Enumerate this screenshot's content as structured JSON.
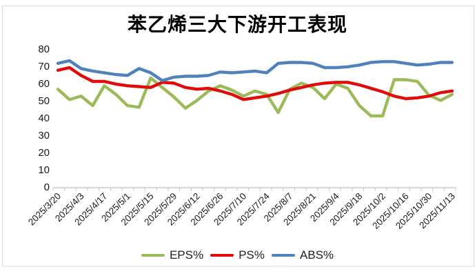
{
  "chart_data": {
    "type": "line",
    "title": "苯乙烯三大下游开工表现",
    "ylabel": "",
    "xlabel": "",
    "ylim": [
      0,
      80
    ],
    "y_ticks": [
      0,
      10,
      20,
      30,
      40,
      50,
      60,
      70,
      80
    ],
    "grid": false,
    "legend_position": "bottom",
    "x_tick_labels": [
      "2025/3/20",
      "2025/4/3",
      "2025/4/17",
      "2025/5/1",
      "2025/5/15",
      "2025/5/29",
      "2025/6/12",
      "2025/6/26",
      "2025/7/10",
      "2025/7/24",
      "2025/8/7",
      "2025/8/21",
      "2025/9/4",
      "2025/9/18",
      "2025/10/2",
      "2025/10/16",
      "2025/10/30",
      "2025/11/13"
    ],
    "x_dates_weekly": [
      "2025/3/20",
      "2025/3/27",
      "2025/4/3",
      "2025/4/10",
      "2025/4/17",
      "2025/4/24",
      "2025/5/1",
      "2025/5/8",
      "2025/5/15",
      "2025/5/22",
      "2025/5/29",
      "2025/6/5",
      "2025/6/12",
      "2025/6/19",
      "2025/6/26",
      "2025/7/3",
      "2025/7/10",
      "2025/7/17",
      "2025/7/24",
      "2025/7/31",
      "2025/8/7",
      "2025/8/14",
      "2025/8/21",
      "2025/8/28",
      "2025/9/4",
      "2025/9/11",
      "2025/9/18",
      "2025/9/25",
      "2025/10/2",
      "2025/10/9",
      "2025/10/16",
      "2025/10/23",
      "2025/10/30",
      "2025/11/6",
      "2025/11/13"
    ],
    "series": [
      {
        "name": "EPS%",
        "color": "#9BBB59",
        "values": [
          56.5,
          50.5,
          52.5,
          47,
          58.5,
          53.5,
          47,
          46,
          63,
          57.5,
          52,
          45.5,
          50,
          55.5,
          58.5,
          56,
          52.5,
          55.5,
          53.5,
          43,
          56.5,
          60,
          57.5,
          51,
          59.5,
          57,
          47,
          41,
          41,
          62,
          62,
          61,
          53,
          50,
          53.5
        ]
      },
      {
        "name": "PS%",
        "color": "#E00B0B",
        "values": [
          67.5,
          69,
          64.5,
          61,
          61,
          59.5,
          58.5,
          58,
          57.5,
          60.5,
          60,
          57.5,
          56.5,
          57,
          55.5,
          53.5,
          50.5,
          51.5,
          52.5,
          54,
          56,
          57.5,
          59,
          60,
          60.5,
          60.5,
          59,
          57,
          55,
          52.5,
          51,
          51.5,
          52.5,
          54.5,
          55.5
        ]
      },
      {
        "name": "ABS%",
        "color": "#4F81BD",
        "values": [
          71.5,
          73,
          68.5,
          67,
          66,
          65,
          64.5,
          68.5,
          66,
          61.5,
          63.5,
          64,
          64,
          64.5,
          66.5,
          66,
          66.5,
          67,
          66,
          71.5,
          72,
          72,
          71.5,
          69,
          69,
          69.5,
          70.5,
          72,
          72.5,
          72.5,
          71.5,
          70.5,
          71,
          72,
          72
        ]
      }
    ],
    "axis_color": "#C0C0C0",
    "tick_label_color": "#1a1a1a",
    "frame_color": "#D9D9D9"
  }
}
